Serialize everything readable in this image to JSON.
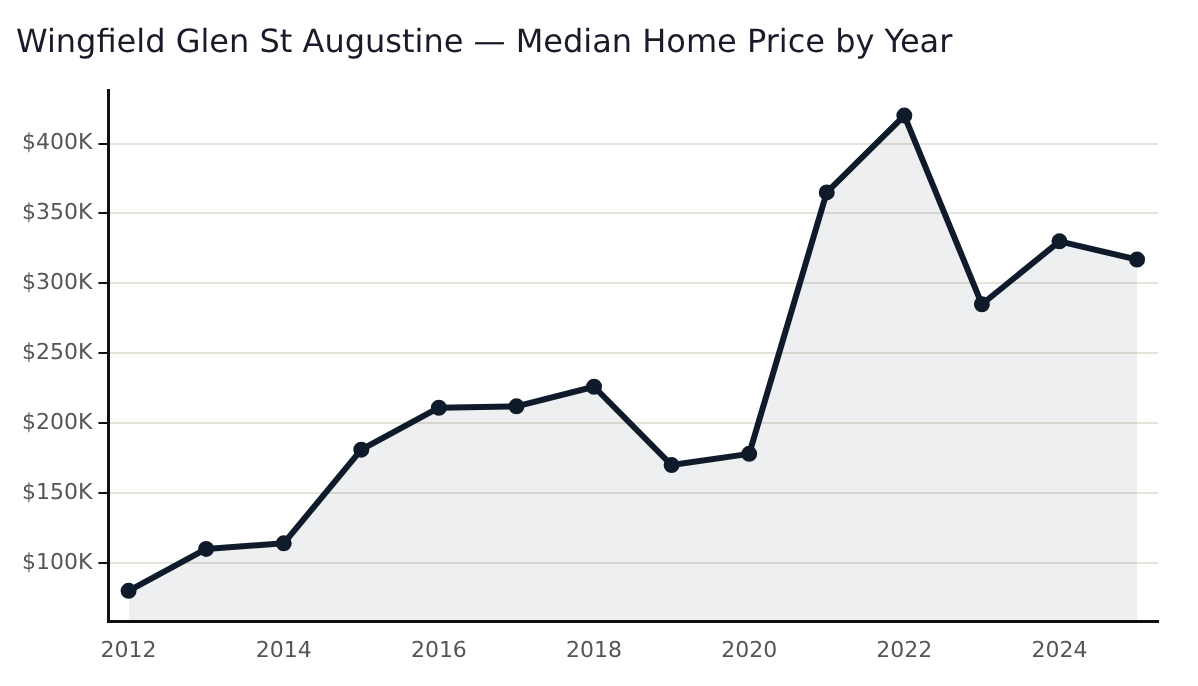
{
  "chart_data": {
    "type": "area",
    "title": "Wingfield Glen St Augustine — Median Home Price by Year",
    "x": [
      2012,
      2013,
      2014,
      2015,
      2016,
      2017,
      2018,
      2019,
      2020,
      2021,
      2022,
      2023,
      2024,
      2025
    ],
    "series": [
      {
        "color": "#0f1a2a",
        "values": [
          80000,
          110000,
          114000,
          181000,
          211000,
          212000,
          226000,
          170000,
          178000,
          365000,
          420000,
          285000,
          330000,
          317000
        ]
      }
    ],
    "xlim": [
      2011.74,
      2025.27
    ],
    "xticks": [
      2012,
      2014,
      2016,
      2018,
      2020,
      2022,
      2024
    ],
    "ylim": [
      58000,
      438000
    ],
    "yticks": [
      {
        "value": 100000,
        "label": "$100K"
      },
      {
        "value": 150000,
        "label": "$150K"
      },
      {
        "value": 200000,
        "label": "$200K"
      },
      {
        "value": 250000,
        "label": "$250K"
      },
      {
        "value": 300000,
        "label": "$300K"
      },
      {
        "value": 350000,
        "label": "$350K"
      },
      {
        "value": 400000,
        "label": "$400K"
      }
    ],
    "grid": "y",
    "legend": false,
    "marker": "circle",
    "line_style": "solid"
  }
}
